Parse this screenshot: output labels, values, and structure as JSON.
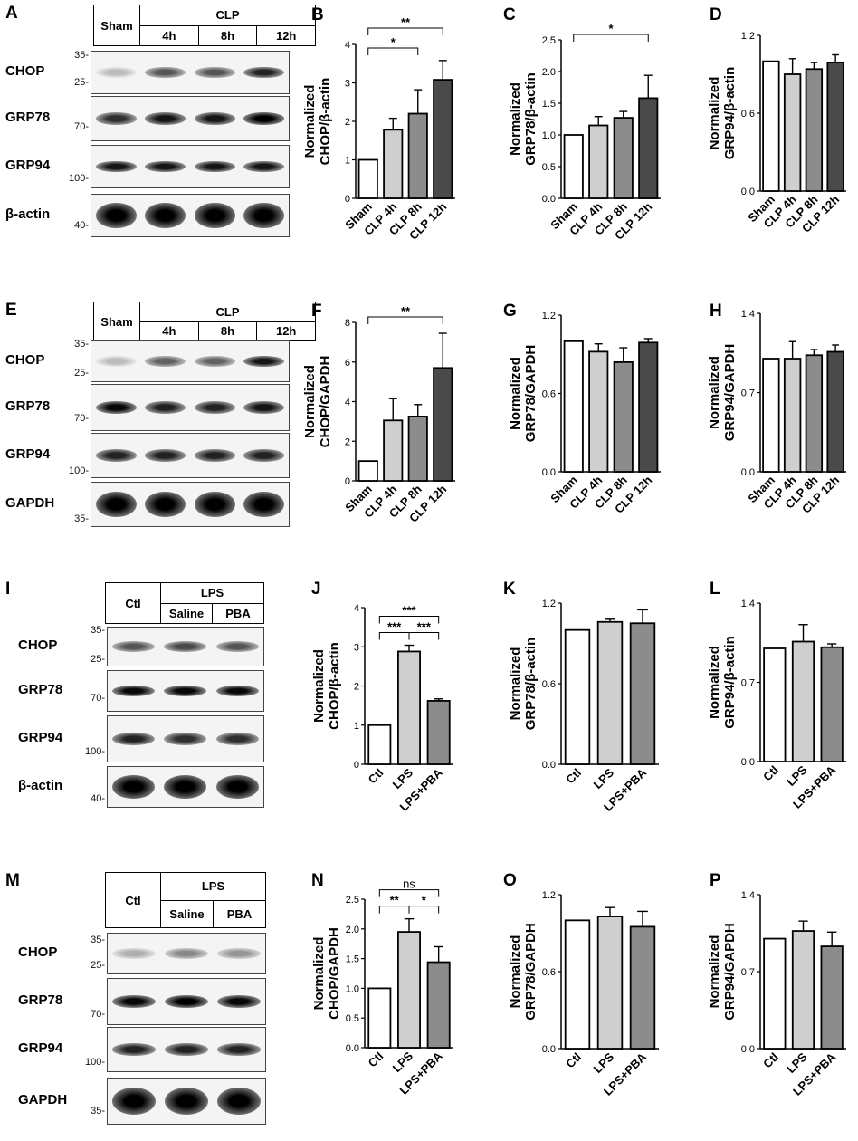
{
  "figure": {
    "rows": [
      {
        "letter": "A",
        "header": {
          "first": "Sham",
          "group": "CLP",
          "subs": [
            "4h",
            "8h",
            "12h"
          ]
        },
        "blots": [
          {
            "label": "CHOP",
            "markers": [
              "35-",
              "25-"
            ]
          },
          {
            "label": "GRP78",
            "markers": [
              "70-"
            ]
          },
          {
            "label": "GRP94",
            "markers": [
              "100-"
            ]
          },
          {
            "label": "β-actin",
            "markers": [
              "40-"
            ]
          }
        ]
      },
      {
        "letter": "E",
        "header": {
          "first": "Sham",
          "group": "CLP",
          "subs": [
            "4h",
            "8h",
            "12h"
          ]
        },
        "blots": [
          {
            "label": "CHOP",
            "markers": [
              "35-",
              "25-"
            ]
          },
          {
            "label": "GRP78",
            "markers": [
              "70-"
            ]
          },
          {
            "label": "GRP94",
            "markers": [
              "100-"
            ]
          },
          {
            "label": "GAPDH",
            "markers": [
              "35-"
            ]
          }
        ]
      },
      {
        "letter": "I",
        "header": {
          "first": "Ctl",
          "group": "LPS",
          "subs": [
            "Saline",
            "PBA"
          ]
        },
        "blots": [
          {
            "label": "CHOP",
            "markers": [
              "35-",
              "25-"
            ]
          },
          {
            "label": "GRP78",
            "markers": [
              "70-"
            ]
          },
          {
            "label": "GRP94",
            "markers": [
              "100-"
            ]
          },
          {
            "label": "β-actin",
            "markers": [
              "40-"
            ]
          }
        ]
      },
      {
        "letter": "M",
        "header": {
          "first": "Ctl",
          "group": "LPS",
          "subs": [
            "Saline",
            "PBA"
          ]
        },
        "blots": [
          {
            "label": "CHOP",
            "markers": [
              "35-",
              "25-"
            ]
          },
          {
            "label": "GRP78",
            "markers": [
              "70-"
            ]
          },
          {
            "label": "GRP94",
            "markers": [
              "100-"
            ]
          },
          {
            "label": "GAPDH",
            "markers": [
              "35-"
            ]
          }
        ]
      }
    ]
  },
  "chart_data": [
    {
      "panel": "B",
      "type": "bar",
      "ylabel": "Normalized\nCHOP/β-actin",
      "categories": [
        "Sham",
        "CLP 4h",
        "CLP 8h",
        "CLP 12h"
      ],
      "values": [
        1.0,
        1.78,
        2.2,
        3.08
      ],
      "errors": [
        0,
        0.3,
        0.62,
        0.5
      ],
      "ylim": [
        0,
        4
      ],
      "yticks": [
        "0",
        "1",
        "2",
        "3",
        "4"
      ],
      "significance": [
        {
          "from": 0,
          "to": 2,
          "label": "*"
        },
        {
          "from": 0,
          "to": 3,
          "label": "**"
        }
      ],
      "fills": [
        "#ffffff",
        "#cfcfcf",
        "#8c8c8c",
        "#4a4a4a"
      ]
    },
    {
      "panel": "C",
      "type": "bar",
      "ylabel": "Normalized\nGRP78/β-actin",
      "categories": [
        "Sham",
        "CLP 4h",
        "CLP 8h",
        "CLP 12h"
      ],
      "values": [
        1.0,
        1.15,
        1.27,
        1.58
      ],
      "errors": [
        0,
        0.14,
        0.1,
        0.36
      ],
      "ylim": [
        0,
        2.5
      ],
      "yticks": [
        "0.0",
        "0.5",
        "1.0",
        "1.5",
        "2.0",
        "2.5"
      ],
      "significance": [
        {
          "from": 0,
          "to": 3,
          "label": "*"
        }
      ],
      "fills": [
        "#ffffff",
        "#cfcfcf",
        "#8c8c8c",
        "#4a4a4a"
      ]
    },
    {
      "panel": "D",
      "type": "bar",
      "ylabel": "Normalized\nGRP94/β-actin",
      "categories": [
        "Sham",
        "CLP 4h",
        "CLP 8h",
        "CLP 12h"
      ],
      "values": [
        1.0,
        0.9,
        0.94,
        0.99
      ],
      "errors": [
        0,
        0.12,
        0.05,
        0.06
      ],
      "ylim": [
        0,
        1.2
      ],
      "yticks": [
        "0.0",
        "0.6",
        "1.2"
      ],
      "significance": [],
      "fills": [
        "#ffffff",
        "#cfcfcf",
        "#8c8c8c",
        "#4a4a4a"
      ]
    },
    {
      "panel": "F",
      "type": "bar",
      "ylabel": "Normalized\nCHOP/GAPDH",
      "categories": [
        "Sham",
        "CLP 4h",
        "CLP 8h",
        "CLP 12h"
      ],
      "values": [
        1.0,
        3.05,
        3.25,
        5.7
      ],
      "errors": [
        0,
        1.1,
        0.6,
        1.75
      ],
      "ylim": [
        0,
        8
      ],
      "yticks": [
        "0",
        "2",
        "4",
        "6",
        "8"
      ],
      "significance": [
        {
          "from": 0,
          "to": 3,
          "label": "**"
        }
      ],
      "fills": [
        "#ffffff",
        "#cfcfcf",
        "#8c8c8c",
        "#4a4a4a"
      ]
    },
    {
      "panel": "G",
      "type": "bar",
      "ylabel": "Normalized\nGRP78/GAPDH",
      "categories": [
        "Sham",
        "CLP 4h",
        "CLP 8h",
        "CLP 12h"
      ],
      "values": [
        1.0,
        0.92,
        0.84,
        0.99
      ],
      "errors": [
        0,
        0.06,
        0.11,
        0.03
      ],
      "ylim": [
        0,
        1.2
      ],
      "yticks": [
        "0.0",
        "0.6",
        "1.2"
      ],
      "significance": [],
      "fills": [
        "#ffffff",
        "#cfcfcf",
        "#8c8c8c",
        "#4a4a4a"
      ]
    },
    {
      "panel": "H",
      "type": "bar",
      "ylabel": "Normalized\nGRP94/GAPDH",
      "categories": [
        "Sham",
        "CLP 4h",
        "CLP 8h",
        "CLP 12h"
      ],
      "values": [
        1.0,
        1.0,
        1.03,
        1.06
      ],
      "errors": [
        0,
        0.15,
        0.05,
        0.06
      ],
      "ylim": [
        0,
        1.4
      ],
      "yticks": [
        "0.0",
        "0.7",
        "1.4"
      ],
      "significance": [],
      "fills": [
        "#ffffff",
        "#cfcfcf",
        "#8c8c8c",
        "#4a4a4a"
      ]
    },
    {
      "panel": "J",
      "type": "bar",
      "ylabel": "Normalized\nCHOP/β-actin",
      "categories": [
        "Ctl",
        "LPS",
        "LPS+PBA"
      ],
      "values": [
        1.0,
        2.88,
        1.62
      ],
      "errors": [
        0,
        0.16,
        0.05
      ],
      "ylim": [
        0,
        4
      ],
      "yticks": [
        "0",
        "1",
        "2",
        "3",
        "4"
      ],
      "significance": [
        {
          "from": 0,
          "to": 1,
          "label": "***"
        },
        {
          "from": 1,
          "to": 2,
          "label": "***"
        },
        {
          "from": 0,
          "to": 2,
          "label": "***"
        }
      ],
      "fills": [
        "#ffffff",
        "#cfcfcf",
        "#8c8c8c"
      ]
    },
    {
      "panel": "K",
      "type": "bar",
      "ylabel": "Normalized\nGRP78/β-actin",
      "categories": [
        "Ctl",
        "LPS",
        "LPS+PBA"
      ],
      "values": [
        1.0,
        1.06,
        1.05
      ],
      "errors": [
        0,
        0.02,
        0.1
      ],
      "ylim": [
        0,
        1.2
      ],
      "yticks": [
        "0.0",
        "0.6",
        "1.2"
      ],
      "significance": [],
      "fills": [
        "#ffffff",
        "#cfcfcf",
        "#8c8c8c"
      ]
    },
    {
      "panel": "L",
      "type": "bar",
      "ylabel": "Normalized\nGRP94/β-actin",
      "categories": [
        "Ctl",
        "LPS",
        "LPS+PBA"
      ],
      "values": [
        1.0,
        1.06,
        1.01
      ],
      "errors": [
        0,
        0.15,
        0.03
      ],
      "ylim": [
        0,
        1.4
      ],
      "yticks": [
        "0.0",
        "0.7",
        "1.4"
      ],
      "significance": [],
      "fills": [
        "#ffffff",
        "#cfcfcf",
        "#8c8c8c"
      ]
    },
    {
      "panel": "N",
      "type": "bar",
      "ylabel": "Normalized\nCHOP/GAPDH",
      "categories": [
        "Ctl",
        "LPS",
        "LPS+PBA"
      ],
      "values": [
        1.0,
        1.95,
        1.44
      ],
      "errors": [
        0,
        0.22,
        0.26
      ],
      "ylim": [
        0,
        2.5
      ],
      "yticks": [
        "0.0",
        "0.5",
        "1.0",
        "1.5",
        "2.0",
        "2.5"
      ],
      "significance": [
        {
          "from": 0,
          "to": 1,
          "label": "**"
        },
        {
          "from": 1,
          "to": 2,
          "label": "*"
        },
        {
          "from": 0,
          "to": 2,
          "label": "ns"
        }
      ],
      "fills": [
        "#ffffff",
        "#cfcfcf",
        "#8c8c8c"
      ]
    },
    {
      "panel": "O",
      "type": "bar",
      "ylabel": "Normalized\nGRP78/GAPDH",
      "categories": [
        "Ctl",
        "LPS",
        "LPS+PBA"
      ],
      "values": [
        1.0,
        1.03,
        0.95
      ],
      "errors": [
        0,
        0.07,
        0.12
      ],
      "ylim": [
        0,
        1.2
      ],
      "yticks": [
        "0.0",
        "0.6",
        "1.2"
      ],
      "significance": [],
      "fills": [
        "#ffffff",
        "#cfcfcf",
        "#8c8c8c"
      ]
    },
    {
      "panel": "P",
      "type": "bar",
      "ylabel": "Normalized\nGRP94/GAPDH",
      "categories": [
        "Ctl",
        "LPS",
        "LPS+PBA"
      ],
      "values": [
        1.0,
        1.07,
        0.93
      ],
      "errors": [
        0,
        0.09,
        0.13
      ],
      "ylim": [
        0,
        1.4
      ],
      "yticks": [
        "0.0",
        "0.7",
        "1.4"
      ],
      "significance": [],
      "fills": [
        "#ffffff",
        "#cfcfcf",
        "#8c8c8c"
      ]
    }
  ]
}
